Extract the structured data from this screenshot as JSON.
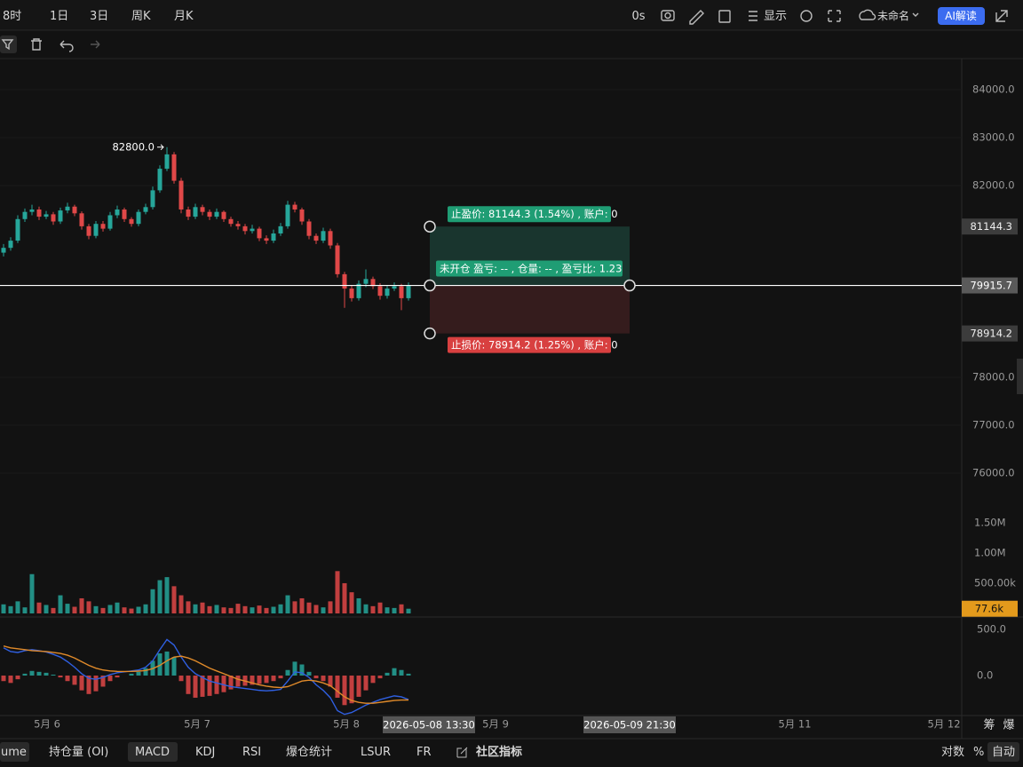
{
  "toolbar": {
    "intervals": [
      "8时",
      "1日",
      "3日",
      "周K",
      "月K"
    ],
    "countdown": "0s",
    "display": "显示",
    "layout_name": "未命名",
    "ai_button": "AI解读"
  },
  "chart_data": {
    "type": "candlestick",
    "price": {
      "ylim": [
        75222,
        84648
      ],
      "yticks": [
        {
          "value": 84000,
          "label": "84000.0"
        },
        {
          "value": 83000,
          "label": "83000.0"
        },
        {
          "value": 82000,
          "label": "82000.0"
        },
        {
          "value": 78000,
          "label": "78000.0"
        },
        {
          "value": 77000,
          "label": "77000.0"
        },
        {
          "value": 76000,
          "label": "76000.0"
        }
      ],
      "up_color": "#26a69a",
      "down_color": "#e04848",
      "candles": [
        [
          80600,
          80780,
          80520,
          80700
        ],
        [
          80700,
          80920,
          80640,
          80850
        ],
        [
          80850,
          81380,
          80800,
          81300
        ],
        [
          81300,
          81520,
          81240,
          81450
        ],
        [
          81450,
          81600,
          81380,
          81500
        ],
        [
          81500,
          81560,
          81280,
          81350
        ],
        [
          81350,
          81470,
          81300,
          81400
        ],
        [
          81400,
          81450,
          81180,
          81250
        ],
        [
          81250,
          81540,
          81200,
          81480
        ],
        [
          81480,
          81640,
          81420,
          81560
        ],
        [
          81560,
          81600,
          81360,
          81420
        ],
        [
          81420,
          81460,
          81080,
          81150
        ],
        [
          81150,
          81200,
          80880,
          80950
        ],
        [
          80950,
          81260,
          80900,
          81200
        ],
        [
          81200,
          81260,
          81040,
          81100
        ],
        [
          81100,
          81450,
          81060,
          81380
        ],
        [
          81380,
          81580,
          81320,
          81500
        ],
        [
          81500,
          81540,
          81240,
          81300
        ],
        [
          81300,
          81340,
          81140,
          81200
        ],
        [
          81200,
          81500,
          81150,
          81450
        ],
        [
          81450,
          81620,
          81400,
          81550
        ],
        [
          81550,
          81980,
          81500,
          81900
        ],
        [
          81900,
          82420,
          81850,
          82350
        ],
        [
          82350,
          82800,
          82300,
          82650
        ],
        [
          82650,
          82700,
          82040,
          82100
        ],
        [
          82100,
          82160,
          81420,
          81500
        ],
        [
          81500,
          81560,
          81280,
          81350
        ],
        [
          81350,
          81620,
          81300,
          81550
        ],
        [
          81550,
          81600,
          81380,
          81450
        ],
        [
          81450,
          81500,
          81280,
          81350
        ],
        [
          81350,
          81520,
          81300,
          81450
        ],
        [
          81450,
          81480,
          81240,
          81300
        ],
        [
          81300,
          81350,
          81140,
          81200
        ],
        [
          81200,
          81260,
          81080,
          81150
        ],
        [
          81150,
          81200,
          80980,
          81050
        ],
        [
          81050,
          81180,
          81000,
          81100
        ],
        [
          81100,
          81140,
          80840,
          80900
        ],
        [
          80900,
          80960,
          80780,
          80850
        ],
        [
          80850,
          81080,
          80800,
          81000
        ],
        [
          81000,
          81220,
          80950,
          81150
        ],
        [
          81150,
          81680,
          81100,
          81600
        ],
        [
          81600,
          81660,
          81440,
          81500
        ],
        [
          81500,
          81540,
          81180,
          81250
        ],
        [
          81250,
          81300,
          80880,
          80950
        ],
        [
          80950,
          81000,
          80780,
          80850
        ],
        [
          80850,
          81120,
          80800,
          81050
        ],
        [
          81050,
          81100,
          80680,
          80750
        ],
        [
          80750,
          80800,
          80080,
          80150
        ],
        [
          80150,
          80200,
          79450,
          79850
        ],
        [
          79850,
          79920,
          79580,
          79650
        ],
        [
          79650,
          80020,
          79600,
          79950
        ],
        [
          79950,
          80250,
          79880,
          80050
        ],
        [
          80050,
          80100,
          79840,
          79900
        ],
        [
          79900,
          79960,
          79620,
          79700
        ],
        [
          79700,
          79920,
          79640,
          79850
        ],
        [
          79850,
          79980,
          79800,
          79900
        ],
        [
          79900,
          79950,
          79400,
          79650
        ],
        [
          79650,
          79980,
          79600,
          79915.7
        ]
      ],
      "high_annotation": {
        "value": 82800,
        "label": "82800.0"
      },
      "last_price": 79915.7
    },
    "position": {
      "take_profit": 81144.3,
      "take_profit_text": "止盈价: 81144.3 (1.54%) , 账户: 0",
      "entry": 79915.7,
      "entry_text": "未开仓 盈亏: -- , 仓量: -- , 盈亏比: 1.23",
      "stop_loss": 78914.2,
      "stop_loss_text": "止损价: 78914.2 (1.25%) , 账户: 0"
    },
    "volume": {
      "ylim": [
        0,
        1630000
      ],
      "yticks": [
        {
          "value": 1500000,
          "label": "1.50M"
        },
        {
          "value": 1000000,
          "label": "1.00M"
        },
        {
          "value": 500000,
          "label": "500.00k"
        }
      ],
      "values": [
        150000,
        120000,
        200000,
        100000,
        650000,
        180000,
        140000,
        90000,
        300000,
        160000,
        110000,
        250000,
        200000,
        120000,
        90000,
        140000,
        180000,
        100000,
        80000,
        110000,
        150000,
        400000,
        550000,
        600000,
        450000,
        300000,
        200000,
        150000,
        180000,
        120000,
        140000,
        100000,
        90000,
        160000,
        120000,
        100000,
        130000,
        90000,
        110000,
        150000,
        300000,
        200000,
        250000,
        180000,
        140000,
        100000,
        200000,
        700000,
        500000,
        350000,
        250000,
        150000,
        120000,
        180000,
        100000,
        90000,
        150000,
        77600
      ],
      "last": {
        "value": 77600,
        "label": "77.6k"
      }
    },
    "macd": {
      "ylim": [
        -423,
        615
      ],
      "yticks": [
        {
          "value": 500,
          "label": "500.0"
        },
        {
          "value": 0,
          "label": "0.0"
        }
      ],
      "dif_color": "#2f5fe0",
      "dea_color": "#e08a2a",
      "histogram": [
        -60,
        -80,
        -40,
        20,
        50,
        40,
        30,
        10,
        -20,
        -60,
        -100,
        -160,
        -200,
        -170,
        -120,
        -60,
        -20,
        0,
        20,
        40,
        80,
        160,
        240,
        260,
        200,
        -60,
        -200,
        -240,
        -230,
        -220,
        -200,
        -180,
        -150,
        -120,
        -110,
        -100,
        -90,
        -80,
        -60,
        -30,
        60,
        150,
        120,
        40,
        -30,
        -60,
        -120,
        -240,
        -320,
        -300,
        -230,
        -160,
        -80,
        -30,
        30,
        80,
        60,
        20
      ],
      "dif": [
        300,
        260,
        250,
        270,
        280,
        270,
        255,
        230,
        200,
        150,
        90,
        20,
        -30,
        -40,
        -20,
        10,
        30,
        40,
        50,
        60,
        90,
        160,
        280,
        390,
        330,
        200,
        90,
        20,
        -20,
        -60,
        -80,
        -100,
        -120,
        -130,
        -140,
        -150,
        -160,
        -165,
        -160,
        -150,
        -60,
        40,
        30,
        -20,
        -100,
        -160,
        -240,
        -380,
        -420,
        -400,
        -360,
        -320,
        -290,
        -260,
        -240,
        -220,
        -230,
        -260
      ],
      "dea": [
        320,
        300,
        290,
        280,
        270,
        265,
        260,
        250,
        240,
        220,
        190,
        150,
        110,
        80,
        60,
        50,
        45,
        44,
        45,
        48,
        55,
        75,
        110,
        160,
        200,
        210,
        190,
        160,
        120,
        80,
        50,
        20,
        -10,
        -40,
        -60,
        -80,
        -100,
        -115,
        -125,
        -130,
        -120,
        -90,
        -60,
        -50,
        -60,
        -80,
        -110,
        -170,
        -230,
        -270,
        -290,
        -300,
        -300,
        -290,
        -280,
        -270,
        -265,
        -265
      ]
    },
    "x_axis": {
      "labels": [
        "5月 6",
        "5月 7",
        "5月 8",
        "5月 9",
        "5月 11",
        "5月 12"
      ],
      "crosshair_labels": [
        "2026-05-08 13:30",
        "2026-05-09 21:30"
      ],
      "side_labels": [
        "筹",
        "爆"
      ]
    }
  },
  "indicator_tabs": [
    "ume",
    "持仓量 (OI)",
    "MACD",
    "KDJ",
    "RSI",
    "爆仓统计",
    "LSUR",
    "FR",
    "社区指标"
  ],
  "bottom_right": [
    "对数",
    "%",
    "自动"
  ]
}
